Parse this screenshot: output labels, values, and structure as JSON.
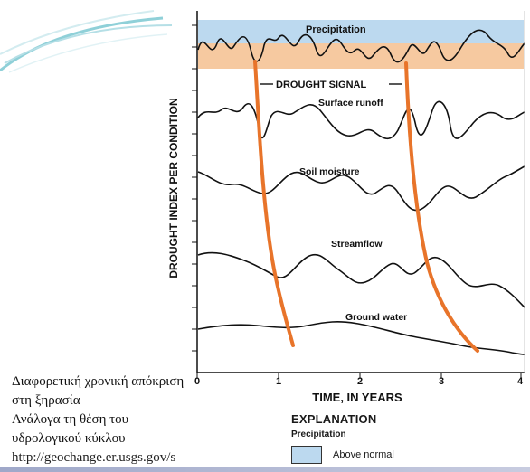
{
  "slide": {
    "caption_lines": [
      "Διαφορετική χρονική απόκριση",
      "στη ξηρασία",
      "Ανάλογα τη θέση του",
      "υδρολογικού κύκλου",
      "http://geochange.er.usgs.gov/s"
    ]
  },
  "diagram": {
    "y_axis_label": "DROUGHT INDEX PER CONDITION",
    "x_axis_label": "TIME, IN YEARS",
    "x_ticks": [
      "0",
      "1",
      "2",
      "3",
      "4"
    ],
    "curve_labels": {
      "precipitation": "Precipitation",
      "drought_signal": "DROUGHT SIGNAL",
      "surface_runoff": "Surface runoff",
      "soil_moisture": "Soil moisture",
      "streamflow": "Streamflow",
      "ground_water": "Ground water"
    },
    "explanation": {
      "title": "EXPLANATION",
      "subtitle": "Precipitation",
      "legend_label": "Above normal"
    },
    "colors": {
      "above_normal_band": "#bcd9ef",
      "below_normal_band": "#f6c9a0",
      "drought_signal_line": "#e8742a",
      "curve": "#111111"
    }
  }
}
